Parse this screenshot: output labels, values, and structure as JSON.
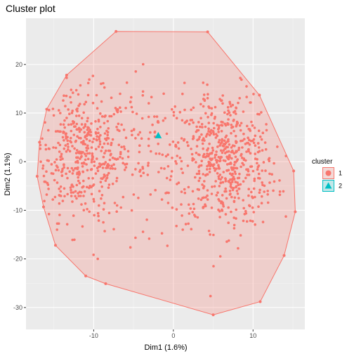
{
  "chart_data": {
    "type": "scatter",
    "title": "Cluster plot",
    "xlabel": "Dim1 (1.6%)",
    "ylabel": "Dim2 (1.1%)",
    "xlim": [
      -18.5,
      16.5
    ],
    "ylim": [
      -34.5,
      29.5
    ],
    "x_ticks": [
      -10,
      0,
      10
    ],
    "y_ticks": [
      -30,
      -20,
      -10,
      0,
      10,
      20
    ],
    "grid": true,
    "legend": {
      "title": "cluster",
      "position": "right",
      "entries": [
        {
          "label": "1",
          "color": "#F8766D",
          "shape": "circle"
        },
        {
          "label": "2",
          "color": "#00BFC4",
          "shape": "triangle"
        }
      ]
    },
    "hull_cluster_1": [
      [
        -7.2,
        26.8
      ],
      [
        4.3,
        26.7
      ],
      [
        10.8,
        13.7
      ],
      [
        15.1,
        -1.9
      ],
      [
        15.3,
        -10.3
      ],
      [
        13.9,
        -19.3
      ],
      [
        10.9,
        -28.8
      ],
      [
        5.0,
        -31.5
      ],
      [
        -8.5,
        -25.1
      ],
      [
        -11.0,
        -23.5
      ],
      [
        -14.8,
        -17.2
      ],
      [
        -16.3,
        -9.3
      ],
      [
        -17.1,
        -3.0
      ],
      [
        -16.8,
        4.0
      ],
      [
        -15.9,
        10.8
      ],
      [
        -13.4,
        17.8
      ]
    ],
    "series": [
      {
        "name": "1",
        "color": "#F8766D",
        "clusters": [
          {
            "cx": -11.5,
            "cy": 1.0,
            "sx": 3.0,
            "sy": 6.5,
            "n": 420
          },
          {
            "cx": 6.5,
            "cy": 0.5,
            "sx": 3.2,
            "sy": 7.0,
            "n": 560
          },
          {
            "cx": -2.5,
            "cy": 2.0,
            "sx": 5.5,
            "sy": 7.5,
            "n": 160
          }
        ]
      },
      {
        "name": "2",
        "color": "#00BFC4",
        "points": [
          [
            -1.9,
            5.4
          ]
        ]
      }
    ]
  }
}
